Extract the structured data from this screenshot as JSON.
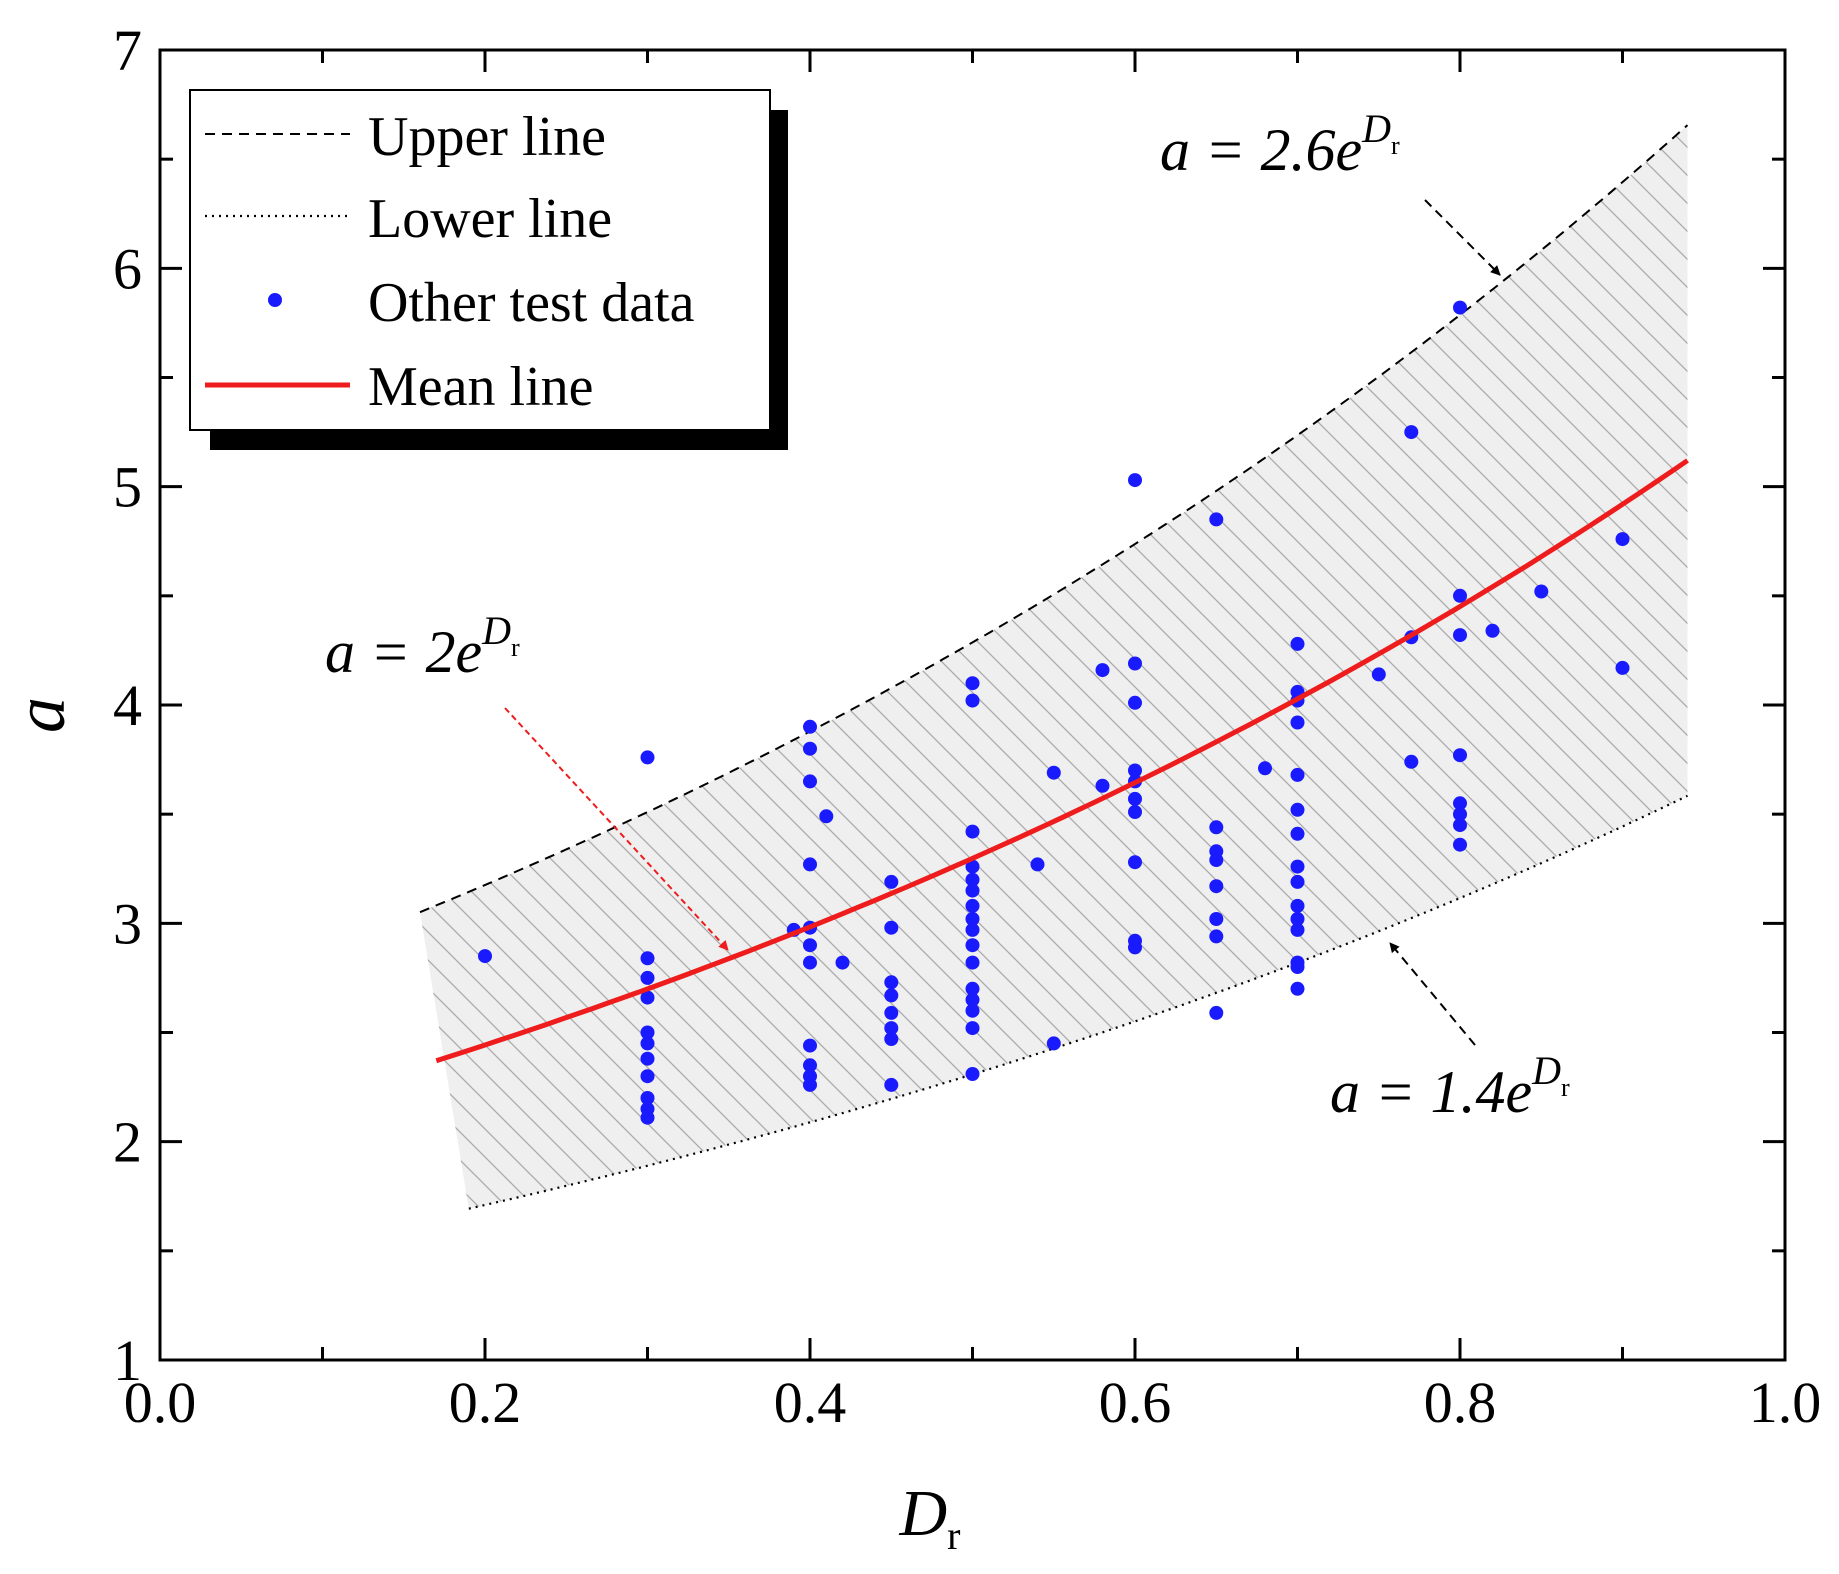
{
  "chart_data": {
    "type": "scatter",
    "xlabel": "D",
    "xlabel_sub": "r",
    "ylabel": "a",
    "xlim": [
      0.0,
      1.0
    ],
    "ylim": [
      1,
      7
    ],
    "x_ticks": [
      "0.0",
      "0.2",
      "0.4",
      "0.6",
      "0.8",
      "1.0"
    ],
    "y_ticks": [
      "1",
      "2",
      "3",
      "4",
      "5",
      "6",
      "7"
    ],
    "legend_position": "top-left",
    "legend": {
      "upper": "Upper line",
      "lower": "Lower line",
      "scatter": "Other test data",
      "mean": "Mean line"
    },
    "series": [
      {
        "name": "Upper line",
        "style": "dashed",
        "color": "#000000",
        "coef": 2.6,
        "x_range": [
          0.16,
          0.94
        ],
        "formula": "a = 2.6e^Dr"
      },
      {
        "name": "Lower line",
        "style": "dotted",
        "color": "#000000",
        "coef": 1.4,
        "x_range": [
          0.19,
          0.94
        ],
        "formula": "a = 1.4e^Dr"
      },
      {
        "name": "Mean line",
        "style": "solid",
        "color": "#ee1c1c",
        "coef": 2.0,
        "x_range": [
          0.17,
          0.94
        ],
        "formula": "a = 2e^Dr"
      }
    ],
    "annotations": {
      "upper": {
        "prefix": "a = 2.6e",
        "sup": "D",
        "sub": "r"
      },
      "mean": {
        "prefix": "a = 2e",
        "sup": "D",
        "sub": "r"
      },
      "lower": {
        "prefix": "a = 1.4e",
        "sup": "D",
        "sub": "r"
      }
    },
    "scatter_color": "#1a1aff",
    "band_fill": "#efefef",
    "points": [
      [
        0.2,
        2.85
      ],
      [
        0.3,
        3.76
      ],
      [
        0.3,
        2.84
      ],
      [
        0.3,
        2.75
      ],
      [
        0.3,
        2.66
      ],
      [
        0.3,
        2.5
      ],
      [
        0.3,
        2.45
      ],
      [
        0.3,
        2.38
      ],
      [
        0.3,
        2.3
      ],
      [
        0.3,
        2.2
      ],
      [
        0.3,
        2.15
      ],
      [
        0.3,
        2.11
      ],
      [
        0.39,
        2.97
      ],
      [
        0.4,
        3.9
      ],
      [
        0.4,
        3.8
      ],
      [
        0.4,
        3.65
      ],
      [
        0.4,
        3.27
      ],
      [
        0.4,
        2.98
      ],
      [
        0.4,
        2.9
      ],
      [
        0.4,
        2.82
      ],
      [
        0.4,
        2.44
      ],
      [
        0.4,
        2.35
      ],
      [
        0.4,
        2.3
      ],
      [
        0.4,
        2.26
      ],
      [
        0.41,
        3.49
      ],
      [
        0.42,
        2.82
      ],
      [
        0.45,
        3.19
      ],
      [
        0.45,
        2.98
      ],
      [
        0.45,
        2.73
      ],
      [
        0.45,
        2.67
      ],
      [
        0.45,
        2.59
      ],
      [
        0.45,
        2.52
      ],
      [
        0.45,
        2.47
      ],
      [
        0.45,
        2.26
      ],
      [
        0.5,
        4.1
      ],
      [
        0.5,
        4.02
      ],
      [
        0.5,
        3.42
      ],
      [
        0.5,
        3.26
      ],
      [
        0.5,
        3.2
      ],
      [
        0.5,
        3.15
      ],
      [
        0.5,
        3.08
      ],
      [
        0.5,
        3.02
      ],
      [
        0.5,
        2.97
      ],
      [
        0.5,
        2.9
      ],
      [
        0.5,
        2.82
      ],
      [
        0.5,
        2.7
      ],
      [
        0.5,
        2.65
      ],
      [
        0.5,
        2.6
      ],
      [
        0.5,
        2.52
      ],
      [
        0.5,
        2.31
      ],
      [
        0.54,
        3.27
      ],
      [
        0.55,
        3.69
      ],
      [
        0.55,
        2.45
      ],
      [
        0.58,
        4.16
      ],
      [
        0.58,
        3.63
      ],
      [
        0.6,
        5.03
      ],
      [
        0.6,
        4.19
      ],
      [
        0.6,
        4.01
      ],
      [
        0.6,
        3.7
      ],
      [
        0.6,
        3.65
      ],
      [
        0.6,
        3.57
      ],
      [
        0.6,
        3.51
      ],
      [
        0.6,
        3.28
      ],
      [
        0.6,
        2.92
      ],
      [
        0.6,
        2.89
      ],
      [
        0.65,
        4.85
      ],
      [
        0.65,
        3.44
      ],
      [
        0.65,
        3.33
      ],
      [
        0.65,
        3.29
      ],
      [
        0.65,
        3.17
      ],
      [
        0.65,
        3.02
      ],
      [
        0.65,
        2.94
      ],
      [
        0.65,
        2.59
      ],
      [
        0.68,
        3.71
      ],
      [
        0.7,
        4.28
      ],
      [
        0.7,
        4.06
      ],
      [
        0.7,
        4.02
      ],
      [
        0.7,
        3.92
      ],
      [
        0.7,
        3.68
      ],
      [
        0.7,
        3.52
      ],
      [
        0.7,
        3.41
      ],
      [
        0.7,
        3.26
      ],
      [
        0.7,
        3.19
      ],
      [
        0.7,
        3.08
      ],
      [
        0.7,
        3.02
      ],
      [
        0.7,
        2.97
      ],
      [
        0.7,
        2.82
      ],
      [
        0.7,
        2.8
      ],
      [
        0.7,
        2.7
      ],
      [
        0.75,
        4.14
      ],
      [
        0.77,
        5.25
      ],
      [
        0.77,
        4.31
      ],
      [
        0.77,
        3.74
      ],
      [
        0.8,
        5.82
      ],
      [
        0.8,
        4.5
      ],
      [
        0.8,
        4.32
      ],
      [
        0.8,
        3.77
      ],
      [
        0.8,
        3.55
      ],
      [
        0.8,
        3.5
      ],
      [
        0.8,
        3.45
      ],
      [
        0.8,
        3.36
      ],
      [
        0.82,
        4.34
      ],
      [
        0.85,
        4.52
      ],
      [
        0.9,
        4.76
      ],
      [
        0.9,
        4.17
      ]
    ]
  }
}
